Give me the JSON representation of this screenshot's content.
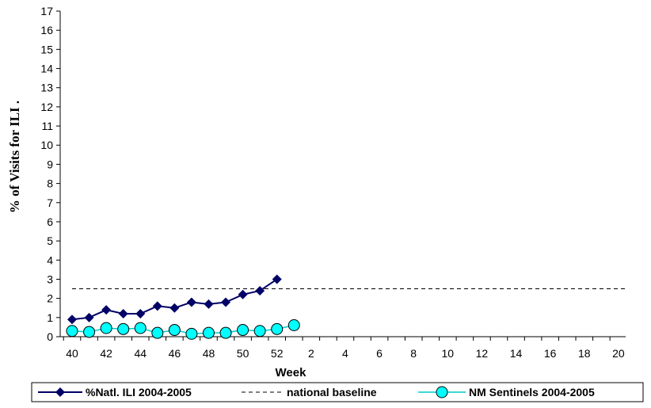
{
  "chart_data": {
    "type": "line",
    "xlabel": "Week",
    "ylabel": "%  of Visits for  ILI  .",
    "ylim": [
      0,
      17
    ],
    "yticks": [
      "0",
      "1",
      "2",
      "3",
      "4",
      "5",
      "6",
      "7",
      "8",
      "9",
      "10",
      "11",
      "12",
      "13",
      "14",
      "15",
      "16",
      "17"
    ],
    "x_categories": [
      "40",
      "41",
      "42",
      "43",
      "44",
      "45",
      "46",
      "47",
      "48",
      "49",
      "50",
      "51",
      "52",
      "1",
      "2",
      "3",
      "4",
      "5",
      "6",
      "7",
      "8",
      "9",
      "10",
      "11",
      "12",
      "13",
      "14",
      "15",
      "16",
      "17",
      "18",
      "19",
      "20"
    ],
    "x_tick_labels": [
      "40",
      "42",
      "44",
      "46",
      "48",
      "50",
      "52",
      "2",
      "4",
      "6",
      "8",
      "10",
      "12",
      "14",
      "16",
      "18",
      "20"
    ],
    "grid": false,
    "legend_position": "bottom",
    "series": [
      {
        "name": "%Natl. ILI 2004-2005",
        "style": "line-diamond",
        "color": "#000066",
        "values": [
          0.9,
          1.0,
          1.4,
          1.2,
          1.2,
          1.6,
          1.5,
          1.8,
          1.7,
          1.8,
          2.2,
          2.4,
          3.0
        ]
      },
      {
        "name": "national baseline",
        "style": "dashed",
        "color": "#000000",
        "constant": 2.5
      },
      {
        "name": "NM Sentinels 2004-2005",
        "style": "line-circle",
        "color": "#00FFFF",
        "values": [
          0.3,
          0.25,
          0.45,
          0.4,
          0.45,
          0.2,
          0.35,
          0.15,
          0.2,
          0.2,
          0.35,
          0.3,
          0.4,
          0.6
        ]
      }
    ]
  }
}
